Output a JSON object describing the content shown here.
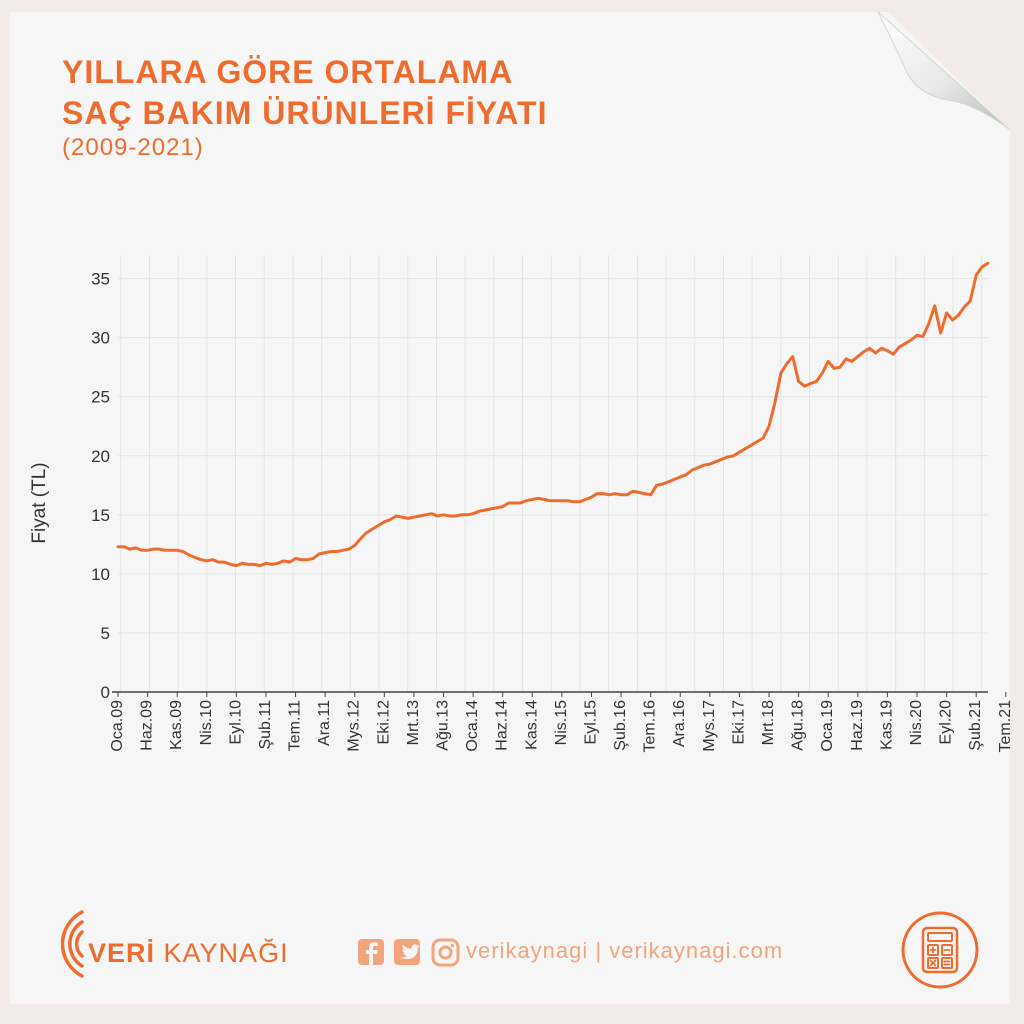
{
  "header": {
    "title_line1": "YILLARA GÖRE ORTALAMA",
    "title_line2": "SAÇ BAKIM ÜRÜNLERİ FİYATI",
    "subtitle": "(2009-2021)"
  },
  "colors": {
    "accent": "#ef6c2f",
    "accent_light": "#f2a57c",
    "grid": "#e3e3e3",
    "axis": "#444444"
  },
  "chart_data": {
    "type": "line",
    "title": "YILLARA GÖRE ORTALAMA SAÇ BAKIM ÜRÜNLERİ FİYATI",
    "subtitle": "(2009-2021)",
    "xlabel": "",
    "ylabel": "Fiyat (TL)",
    "ylim": [
      0,
      37
    ],
    "yticks": [
      0,
      5,
      10,
      15,
      20,
      25,
      30,
      35
    ],
    "grid": true,
    "xtick_labels": [
      "Oca.09",
      "Haz.09",
      "Kas.09",
      "Nis.10",
      "Eyl.10",
      "Şub.11",
      "Tem.11",
      "Ara.11",
      "Mys.12",
      "Eki.12",
      "Mrt.13",
      "Ağu.13",
      "Oca.14",
      "Haz.14",
      "Kas.14",
      "Nis.15",
      "Eyl.15",
      "Şub.16",
      "Tem.16",
      "Ara.16",
      "Mys.17",
      "Eki.17",
      "Mrt.18",
      "Ağu.18",
      "Oca.19",
      "Haz.19",
      "Kas.19",
      "Nis.20",
      "Eyl.20",
      "Şub.21",
      "Tem.21"
    ],
    "x_label_interval_months": 5,
    "x_start": "2009-01",
    "x_end": "2021-10",
    "series": [
      {
        "name": "",
        "values": [
          12.3,
          12.3,
          12.1,
          12.2,
          12.0,
          12.0,
          12.1,
          12.1,
          12.0,
          12.0,
          12.0,
          11.9,
          11.6,
          11.4,
          11.2,
          11.1,
          11.2,
          11.0,
          11.0,
          10.8,
          10.7,
          10.9,
          10.8,
          10.8,
          10.7,
          10.9,
          10.8,
          10.9,
          11.1,
          11.0,
          11.3,
          11.2,
          11.2,
          11.3,
          11.7,
          11.8,
          11.9,
          11.9,
          12.0,
          12.1,
          12.4,
          13.0,
          13.5,
          13.8,
          14.1,
          14.4,
          14.6,
          14.9,
          14.8,
          14.7,
          14.8,
          14.9,
          15.0,
          15.1,
          14.9,
          15.0,
          14.9,
          14.9,
          15.0,
          15.0,
          15.1,
          15.3,
          15.4,
          15.5,
          15.6,
          15.7,
          16.0,
          16.0,
          16.0,
          16.2,
          16.3,
          16.4,
          16.3,
          16.2,
          16.2,
          16.2,
          16.2,
          16.1,
          16.1,
          16.3,
          16.5,
          16.8,
          16.8,
          16.7,
          16.8,
          16.7,
          16.7,
          17.0,
          16.9,
          16.8,
          16.7,
          17.5,
          17.6,
          17.8,
          18.0,
          18.2,
          18.4,
          18.8,
          19.0,
          19.2,
          19.3,
          19.5,
          19.7,
          19.9,
          20.0,
          20.3,
          20.6,
          20.9,
          21.2,
          21.5,
          22.5,
          24.5,
          27.0,
          27.8,
          28.4,
          26.3,
          25.9,
          26.1,
          26.3,
          27.0,
          28.0,
          27.4,
          27.5,
          28.2,
          28.0,
          28.4,
          28.8,
          29.1,
          28.7,
          29.1,
          28.9,
          28.6,
          29.2,
          29.5,
          29.8,
          30.2,
          30.1,
          31.2,
          32.7,
          30.4,
          32.1,
          31.5,
          31.9,
          32.6,
          33.1,
          35.3,
          36.0,
          36.3
        ]
      }
    ]
  },
  "footer": {
    "brand_bold": "VERİ",
    "brand_rest": " KAYNAĞI",
    "social_text": "verikaynagi | verikaynagi.com",
    "icons": [
      "facebook-icon",
      "twitter-icon",
      "instagram-icon",
      "calculator-icon"
    ]
  }
}
